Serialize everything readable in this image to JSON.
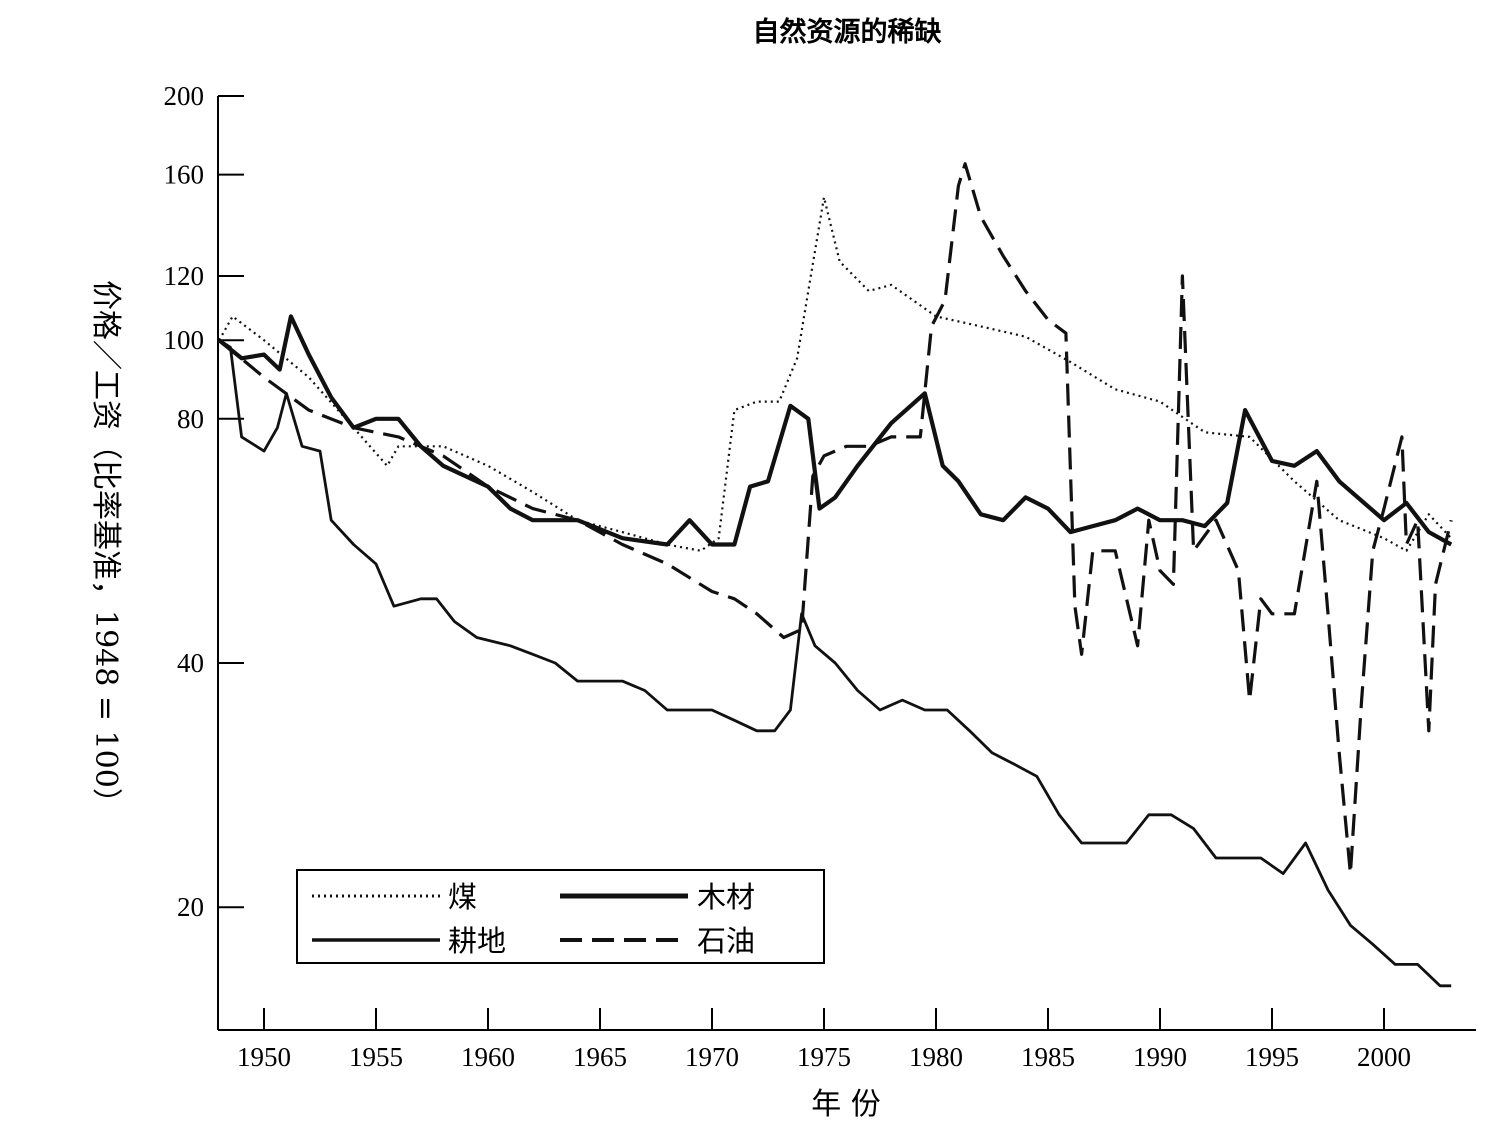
{
  "chart_data": {
    "type": "line",
    "title": "自然资源的稀缺",
    "xlabel": "年 份",
    "ylabel": "价格／工资（比率基准，1948 = 100）",
    "y_scale": "log",
    "xlim": [
      1946,
      2004
    ],
    "ylim": [
      14,
      200
    ],
    "x_ticks": [
      1950,
      1955,
      1960,
      1965,
      1970,
      1975,
      1980,
      1985,
      1990,
      1995,
      2000
    ],
    "y_ticks": [
      20,
      40,
      80,
      100,
      120,
      160,
      200
    ],
    "legend_position": "bottom-left",
    "series": [
      {
        "name": "煤",
        "style": "dotted",
        "x": [
          1948,
          1948.6,
          1950,
          1952,
          1954,
          1955.5,
          1956,
          1958,
          1960,
          1962,
          1964,
          1966,
          1968,
          1969.5,
          1970.3,
          1971,
          1972,
          1973,
          1973.8,
          1974.3,
          1975,
          1975.7,
          1977,
          1978,
          1980,
          1982,
          1984,
          1986,
          1988,
          1990,
          1992,
          1994,
          1996,
          1998,
          2000,
          2001,
          2002,
          2003
        ],
        "values": [
          100,
          107,
          100,
          90,
          78,
          70,
          74,
          74,
          70,
          65,
          60,
          58,
          56,
          55,
          57,
          82,
          84,
          84,
          95,
          115,
          150,
          125,
          115,
          117,
          107,
          104,
          101,
          94,
          87,
          84,
          77,
          76,
          67,
          60,
          57,
          55,
          61,
          57
        ]
      },
      {
        "name": "木材",
        "style": "thick-solid",
        "x": [
          1948,
          1949,
          1950,
          1950.7,
          1951.2,
          1952,
          1953,
          1954,
          1955,
          1956,
          1957,
          1958,
          1960,
          1961,
          1962,
          1964,
          1966,
          1968,
          1969,
          1970,
          1971,
          1971.7,
          1972.5,
          1973.5,
          1974.3,
          1974.8,
          1975.5,
          1976.5,
          1978,
          1979.5,
          1980.3,
          1981,
          1982,
          1983,
          1984,
          1985,
          1986,
          1987,
          1988,
          1989,
          1990,
          1991,
          1992,
          1993,
          1993.8,
          1995,
          1996,
          1997,
          1998,
          2000,
          2001,
          2002,
          2003
        ],
        "values": [
          100,
          95,
          96,
          92,
          107,
          96,
          85,
          78,
          80,
          80,
          74,
          70,
          66,
          62,
          60,
          60,
          57,
          56,
          60,
          56,
          56,
          66,
          67,
          83,
          80,
          62,
          64,
          70,
          79,
          86,
          70,
          67,
          61,
          60,
          64,
          62,
          58,
          59,
          60,
          62,
          60,
          60,
          59,
          63,
          82,
          71,
          70,
          73,
          67,
          60,
          63,
          58,
          56
        ]
      },
      {
        "name": "耕地",
        "style": "solid",
        "x": [
          1948,
          1948.5,
          1949,
          1950,
          1950.6,
          1951,
          1951.7,
          1952.5,
          1953,
          1954,
          1955,
          1955.8,
          1957,
          1957.7,
          1958.5,
          1959.5,
          1961,
          1962,
          1963,
          1964,
          1965,
          1966,
          1967,
          1968,
          1969,
          1970,
          1971,
          1972,
          1972.8,
          1973.5,
          1974,
          1974.6,
          1975.5,
          1976.5,
          1977.5,
          1978.5,
          1979.5,
          1980.5,
          1981.5,
          1982.5,
          1983.5,
          1984.5,
          1985.5,
          1986.5,
          1987.5,
          1988.5,
          1989.5,
          1990.5,
          1991.5,
          1992.5,
          1993.5,
          1994.5,
          1995.5,
          1996.5,
          1997.5,
          1998.5,
          1999.5,
          2000.5,
          2001.5,
          2002.5,
          2003
        ],
        "values": [
          100,
          98,
          76,
          73,
          78,
          86,
          74,
          73,
          60,
          56,
          53,
          47,
          48,
          48,
          45,
          43,
          42,
          41,
          40,
          38,
          38,
          38,
          37,
          35,
          35,
          35,
          34,
          33,
          33,
          35,
          46,
          42,
          40,
          37,
          35,
          36,
          35,
          35,
          33,
          31,
          30,
          29,
          26,
          24,
          24,
          24,
          26,
          26,
          25,
          23,
          23,
          23,
          22,
          24,
          21,
          19,
          18,
          17,
          17,
          16,
          16
        ]
      },
      {
        "name": "石油",
        "style": "dashed",
        "x": [
          1948,
          1950,
          1952,
          1954,
          1956,
          1958,
          1960,
          1962,
          1964,
          1966,
          1968,
          1970,
          1971,
          1972,
          1973.2,
          1974,
          1974.5,
          1975,
          1976,
          1977,
          1978,
          1979.3,
          1979.8,
          1980.4,
          1981,
          1981.3,
          1982,
          1983,
          1984,
          1985,
          1985.8,
          1986.2,
          1986.5,
          1987,
          1988,
          1989,
          1989.5,
          1990,
          1990.6,
          1991,
          1991.5,
          1992.5,
          1993.5,
          1994,
          1994.5,
          1995,
          1996,
          1997,
          1997.5,
          1998,
          1998.5,
          1999,
          1999.5,
          2000,
          2000.8,
          2001,
          2001.5,
          2002,
          2002.3,
          2003
        ],
        "values": [
          100,
          90,
          82,
          78,
          76,
          72,
          66,
          62,
          60,
          56,
          53,
          49,
          48,
          46,
          43,
          44,
          68,
          72,
          74,
          74,
          76,
          76,
          104,
          112,
          155,
          165,
          142,
          127,
          115,
          106,
          102,
          47,
          41,
          55,
          55,
          42,
          60,
          52,
          50,
          120,
          55,
          60,
          52,
          36,
          48,
          46,
          46,
          67,
          46,
          31,
          22,
          36,
          55,
          62,
          76,
          56,
          60,
          33,
          50,
          60
        ]
      }
    ]
  }
}
